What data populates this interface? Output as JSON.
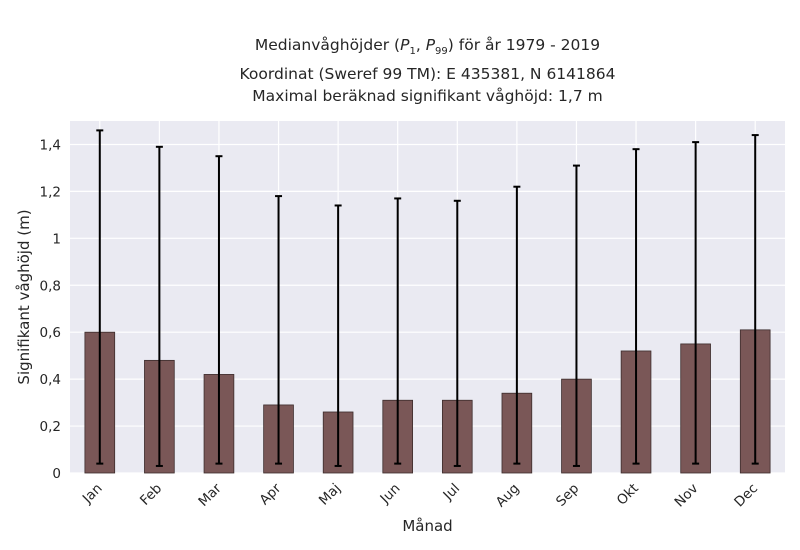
{
  "chart_data": {
    "type": "bar",
    "title": {
      "line1_prefix": "Medianvåghöjder (",
      "p_lower": "P",
      "p_lower_sub": "1",
      "separator": ", ",
      "p_upper": "P",
      "p_upper_sub": "99",
      "line1_suffix": ") för år 1979 - 2019",
      "line2": "Koordinat (Sweref 99 TM): E 435381, N 6141864",
      "line3": "Maximal beräknad signifikant våghöjd: 1,7 m"
    },
    "xlabel": "Månad",
    "ylabel": "Signifikant våghöjd (m)",
    "ylim": [
      0,
      1.5
    ],
    "yticks": [
      0,
      0.2,
      0.4,
      0.6,
      0.8,
      1.0,
      1.2,
      1.4
    ],
    "ytick_labels": [
      "0",
      "0,2",
      "0,4",
      "0,6",
      "0,8",
      "1",
      "1,2",
      "1,4"
    ],
    "categories": [
      "Jan",
      "Feb",
      "Mar",
      "Apr",
      "Maj",
      "Jun",
      "Jul",
      "Aug",
      "Sep",
      "Okt",
      "Nov",
      "Dec"
    ],
    "values": [
      0.6,
      0.48,
      0.42,
      0.29,
      0.26,
      0.31,
      0.31,
      0.34,
      0.4,
      0.52,
      0.55,
      0.61
    ],
    "p1": [
      0.04,
      0.03,
      0.04,
      0.04,
      0.03,
      0.04,
      0.03,
      0.04,
      0.03,
      0.04,
      0.04,
      0.04
    ],
    "p99": [
      1.46,
      1.39,
      1.35,
      1.18,
      1.14,
      1.17,
      1.16,
      1.22,
      1.31,
      1.38,
      1.41,
      1.44
    ],
    "grid": true,
    "colors": {
      "bar": "#7a5757",
      "bar_edge": "#3c2c2c",
      "background": "#eaeaf2",
      "grid": "#ffffff",
      "errorbar": "#000000"
    }
  }
}
